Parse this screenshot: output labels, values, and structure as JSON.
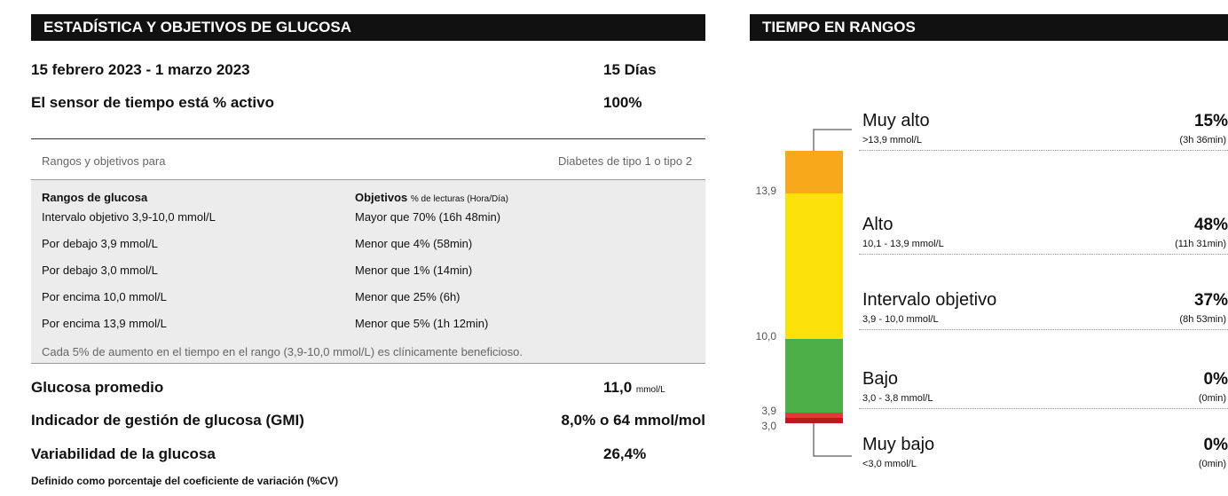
{
  "stats": {
    "title": "ESTADÍSTICA Y OBJETIVOS DE GLUCOSA",
    "period": "15 febrero 2023 - 1 marzo 2023",
    "days": "15 Días",
    "sensor_label": "El sensor de tiempo está % activo",
    "sensor_value": "100%",
    "ranges_label": "Rangos y objetivos para",
    "ranges_for": "Diabetes de tipo 1 o tipo 2",
    "table": {
      "header_ranges": "Rangos de glucosa",
      "header_targets": "Objetivos",
      "header_targets_note": "% de lecturas (Hora/Día)",
      "rows": [
        [
          "Intervalo objetivo 3,9-10,0 mmol/L",
          "Mayor que 70% (16h 48min)"
        ],
        [
          "Por debajo 3,9 mmol/L",
          "Menor que 4% (58min)"
        ],
        [
          "Por debajo 3,0 mmol/L",
          "Menor que 1% (14min)"
        ],
        [
          "Por encima 10,0 mmol/L",
          "Menor que 25% (6h)"
        ],
        [
          "Por encima 13,9 mmol/L",
          "Menor que 5% (1h 12min)"
        ]
      ],
      "note": "Cada 5% de aumento en el tiempo en el rango (3,9-10,0 mmol/L) es clínicamente beneficioso."
    },
    "mean_label": "Glucosa promedio",
    "mean_value": "11,0",
    "mean_unit": "mmol/L",
    "gmi_label": "Indicador de gestión de glucosa (GMI)",
    "gmi_value": "8,0% o 64 mmol/mol",
    "cv_label": "Variabilidad de la glucosa",
    "cv_value": "26,4%",
    "cv_note": "Definido como porcentaje del coeficiente de variación (%CV)"
  },
  "tir": {
    "title": "TIEMPO EN RANGOS",
    "axis_labels": [
      "13,9",
      "10,0",
      "3,9",
      "3,0"
    ],
    "ranges": [
      {
        "name": "Muy alto",
        "range": ">13,9 mmol/L",
        "percent": "15%",
        "time": "(3h 36min)"
      },
      {
        "name": "Alto",
        "range": "10,1 - 13,9 mmol/L",
        "percent": "48%",
        "time": "(11h 31min)"
      },
      {
        "name": "Intervalo objetivo",
        "range": "3,9 - 10,0 mmol/L",
        "percent": "37%",
        "time": "(8h 53min)"
      },
      {
        "name": "Bajo",
        "range": "3,0 - 3,8 mmol/L",
        "percent": "0%",
        "time": "(0min)"
      },
      {
        "name": "Muy bajo",
        "range": "<3,0 mmol/L",
        "percent": "0%",
        "time": "(0min)"
      }
    ]
  }
}
